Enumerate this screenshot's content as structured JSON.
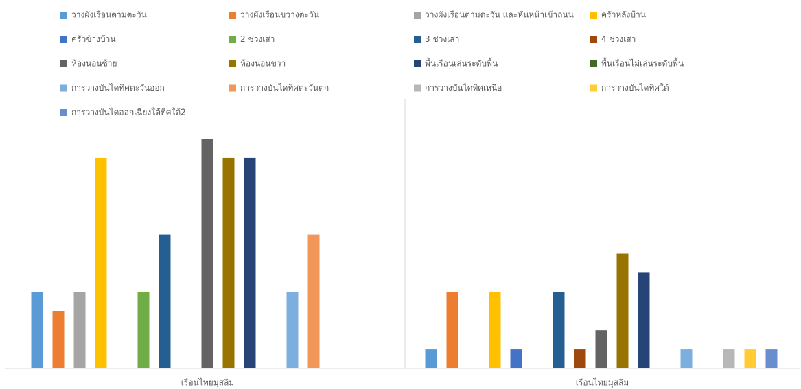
{
  "chart_data": {
    "type": "bar",
    "categories": [
      "เรือนไทยมุสลิม",
      "เรือนไทยมุสลิม"
    ],
    "series": [
      {
        "name": "วางผังเรือนตามตะวัน",
        "color": "#5b9bd5",
        "values": [
          4,
          1
        ]
      },
      {
        "name": "วางผังเรือนขวางตะวัน",
        "color": "#ed7d31",
        "values": [
          3,
          4
        ]
      },
      {
        "name": "วางผังเรือนตามตะวัน และหันหน้าเข้าถนน",
        "color": "#a5a5a5",
        "values": [
          4,
          0
        ]
      },
      {
        "name": "ครัวหลังบ้าน",
        "color": "#ffc000",
        "values": [
          11,
          4
        ]
      },
      {
        "name": "ครัวข้างบ้าน",
        "color": "#4472c4",
        "values": [
          0,
          1
        ]
      },
      {
        "name": "2 ช่วงเสา",
        "color": "#70ad47",
        "values": [
          4,
          0
        ]
      },
      {
        "name": "3 ช่วงเสา",
        "color": "#255e91",
        "values": [
          7,
          4
        ]
      },
      {
        "name": "4 ช่วงเสา",
        "color": "#9e480e",
        "values": [
          0,
          1
        ]
      },
      {
        "name": "ห้องนอนซ้าย",
        "color": "#636363",
        "values": [
          12,
          2
        ]
      },
      {
        "name": "ห้องนอนขวา",
        "color": "#997300",
        "values": [
          11,
          6
        ]
      },
      {
        "name": "พื้นเรือนเล่นระดับพื้น",
        "color": "#264478",
        "values": [
          11,
          5
        ]
      },
      {
        "name": "พื้นเรือนไม่เล่นระดับพื้น",
        "color": "#43682b",
        "values": [
          0,
          0
        ]
      },
      {
        "name": "การวางบันไดทิศตะวันออก",
        "color": "#7cafdd",
        "values": [
          4,
          1
        ]
      },
      {
        "name": "การวางบันไดทิศตะวันตก",
        "color": "#f1975a",
        "values": [
          7,
          0
        ]
      },
      {
        "name": "การวางบันไดทิศเหนือ",
        "color": "#b7b7b7",
        "values": [
          0,
          1
        ]
      },
      {
        "name": "การวางบันไดทิศใต้",
        "color": "#ffcd33",
        "values": [
          0,
          1
        ]
      },
      {
        "name": "การวางบันไดออกเฉียงใต้ทิศใต้2",
        "color": "#698ed0",
        "values": [
          0,
          1
        ]
      }
    ]
  }
}
